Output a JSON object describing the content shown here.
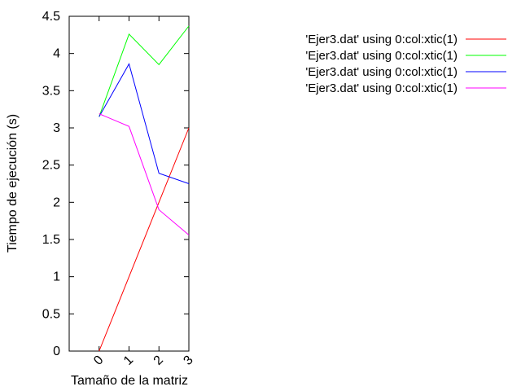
{
  "chart_data": {
    "type": "line",
    "title": "",
    "xlabel": "Tamaño de la matriz",
    "ylabel": "Tiempo de ejecución (s)",
    "categories": [
      "0",
      "1",
      "2",
      "3"
    ],
    "x": [
      0,
      1,
      2,
      3
    ],
    "xlim": [
      -1,
      3
    ],
    "ylim": [
      0,
      4.5
    ],
    "yticks": [
      "0",
      "0.5",
      "1",
      "1.5",
      "2",
      "2.5",
      "3",
      "3.5",
      "4",
      "4.5"
    ],
    "grid": false,
    "legend_position": "top-right",
    "series": [
      {
        "name": "'Ejer3.dat' using 0:col:xtic(1)",
        "color": "#ff0000",
        "values": [
          0,
          1.0,
          2.0,
          3.0
        ]
      },
      {
        "name": "'Ejer3.dat' using 0:col:xtic(1)",
        "color": "#00ff00",
        "values": [
          3.15,
          4.26,
          3.85,
          4.37
        ]
      },
      {
        "name": "'Ejer3.dat' using 0:col:xtic(1)",
        "color": "#0000ff",
        "values": [
          3.15,
          3.86,
          2.39,
          2.25
        ]
      },
      {
        "name": "'Ejer3.dat' using 0:col:xtic(1)",
        "color": "#ff00ff",
        "values": [
          3.19,
          3.02,
          1.9,
          1.56
        ]
      }
    ]
  }
}
